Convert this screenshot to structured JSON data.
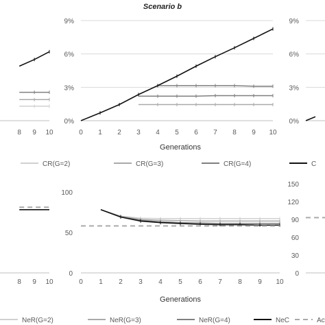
{
  "scenario_title": "Scenario b",
  "top_xlabel": "Generations",
  "bottom_xlabel": "Generations",
  "top_legend": [
    "CR(G=2)",
    "CR(G=3)",
    "CR(G=4)",
    "C"
  ],
  "bottom_legend": [
    "NeR(G=2)",
    "NeR(G=3)",
    "NeR(G=4)",
    "NeC",
    "Actua"
  ],
  "colors": {
    "g2": "#d0d0d0",
    "g3": "#a9a9a9",
    "g4": "#7f7f7f",
    "c": "#111111",
    "actual": "#a9a9a9",
    "grid": "#d9d9d9",
    "axis": "#bfbfbf",
    "text": "#595959"
  },
  "chart_data": [
    {
      "type": "line",
      "panel": "top-left (partially visible)",
      "x_ticks": [
        "8",
        "9",
        "10"
      ],
      "series": [
        {
          "name": "CR(G=2)",
          "x": [
            8,
            9,
            10
          ],
          "y": [
            1.3,
            1.3,
            1.3
          ]
        },
        {
          "name": "CR(G=3)",
          "x": [
            8,
            9,
            10
          ],
          "y": [
            1.9,
            1.9,
            1.9
          ]
        },
        {
          "name": "CR(G=4)",
          "x": [
            8,
            9,
            10
          ],
          "y": [
            2.55,
            2.55,
            2.55
          ]
        },
        {
          "name": "C",
          "x": [
            8,
            9,
            10
          ],
          "y": [
            4.9,
            5.5,
            6.2
          ]
        }
      ]
    },
    {
      "type": "line",
      "panel": "top-center",
      "title": "Scenario b",
      "xlabel": "Generations",
      "x_ticks": [
        "0",
        "1",
        "2",
        "3",
        "4",
        "5",
        "6",
        "7",
        "8",
        "9",
        "10"
      ],
      "y_ticks": [
        "0%",
        "3%",
        "6%",
        "9%"
      ],
      "xlim": [
        0,
        10
      ],
      "ylim": [
        0,
        9
      ],
      "series": [
        {
          "name": "CR(G=3)",
          "x": [
            3,
            4,
            5,
            6,
            7,
            8,
            9,
            10
          ],
          "y": [
            1.45,
            1.45,
            1.45,
            1.45,
            1.45,
            1.45,
            1.45,
            1.45
          ]
        },
        {
          "name": "CR(G=4)",
          "x": [
            3,
            4,
            5,
            6,
            7,
            8,
            9,
            10
          ],
          "y": [
            2.2,
            2.2,
            2.2,
            2.2,
            2.25,
            2.25,
            2.25,
            2.25
          ]
        },
        {
          "name": "CR(G=4) upper",
          "x": [
            4,
            5,
            6,
            7,
            8,
            9,
            10
          ],
          "y": [
            3.15,
            3.15,
            3.15,
            3.15,
            3.15,
            3.1,
            3.1
          ]
        },
        {
          "name": "C",
          "x": [
            0,
            1,
            2,
            3,
            4,
            5,
            6,
            7,
            8,
            9,
            10
          ],
          "y": [
            0,
            0.7,
            1.45,
            2.35,
            3.15,
            4.0,
            4.9,
            5.75,
            6.55,
            7.4,
            8.25
          ]
        }
      ]
    },
    {
      "type": "line",
      "panel": "top-right (partially visible)",
      "y_ticks": [
        "0%",
        "3%",
        "6%",
        "9%"
      ],
      "ylim": [
        0,
        9
      ],
      "series": [
        {
          "name": "C",
          "x": [
            0,
            0.5
          ],
          "y": [
            0,
            0.35
          ]
        }
      ]
    },
    {
      "type": "line",
      "panel": "bottom-left (partially visible)",
      "x_ticks": [
        "8",
        "9",
        "10"
      ],
      "series": [
        {
          "name": "NeC",
          "x": [
            8,
            9,
            10
          ],
          "y": [
            78,
            78,
            78
          ]
        },
        {
          "name": "Actual",
          "x": [
            8,
            9,
            10
          ],
          "y": [
            81,
            81,
            81
          ]
        }
      ]
    },
    {
      "type": "line",
      "panel": "bottom-center",
      "xlabel": "Generations",
      "x_ticks": [
        "0",
        "1",
        "2",
        "3",
        "4",
        "5",
        "6",
        "7",
        "8",
        "9",
        "10"
      ],
      "y_ticks": [
        "0",
        "50",
        "100"
      ],
      "xlim": [
        0,
        10
      ],
      "ylim": [
        0,
        110
      ],
      "series": [
        {
          "name": "NeR(G=2)",
          "x": [
            1,
            2,
            3,
            4,
            5,
            6,
            7,
            8,
            9,
            10
          ],
          "y": [
            78,
            70,
            67.5,
            67,
            67,
            67,
            67,
            67,
            67,
            67
          ]
        },
        {
          "name": "NeR(G=3)",
          "x": [
            1,
            2,
            3,
            4,
            5,
            6,
            7,
            8,
            9,
            10
          ],
          "y": [
            78,
            70,
            66,
            65,
            64.5,
            64,
            64,
            64,
            64,
            64
          ]
        },
        {
          "name": "NeR(G=4)",
          "x": [
            1,
            2,
            3,
            4,
            5,
            6,
            7,
            8,
            9,
            10
          ],
          "y": [
            78,
            69,
            65,
            63,
            62,
            61.5,
            61,
            61,
            61,
            61
          ]
        },
        {
          "name": "NeC",
          "x": [
            1,
            2,
            3,
            4,
            5,
            6,
            7,
            8,
            9,
            10
          ],
          "y": [
            78,
            69,
            64,
            62,
            61,
            60,
            59.5,
            59.5,
            59,
            59
          ]
        },
        {
          "name": "Actual",
          "x": [
            0,
            10
          ],
          "y": [
            58,
            58
          ]
        }
      ]
    },
    {
      "type": "line",
      "panel": "bottom-right (partially visible)",
      "y_ticks": [
        "0",
        "30",
        "60",
        "90",
        "120",
        "150"
      ],
      "ylim": [
        0,
        150
      ],
      "series": [
        {
          "name": "Actual",
          "x": [
            0,
            1
          ],
          "y": [
            93,
            93
          ]
        }
      ]
    }
  ]
}
